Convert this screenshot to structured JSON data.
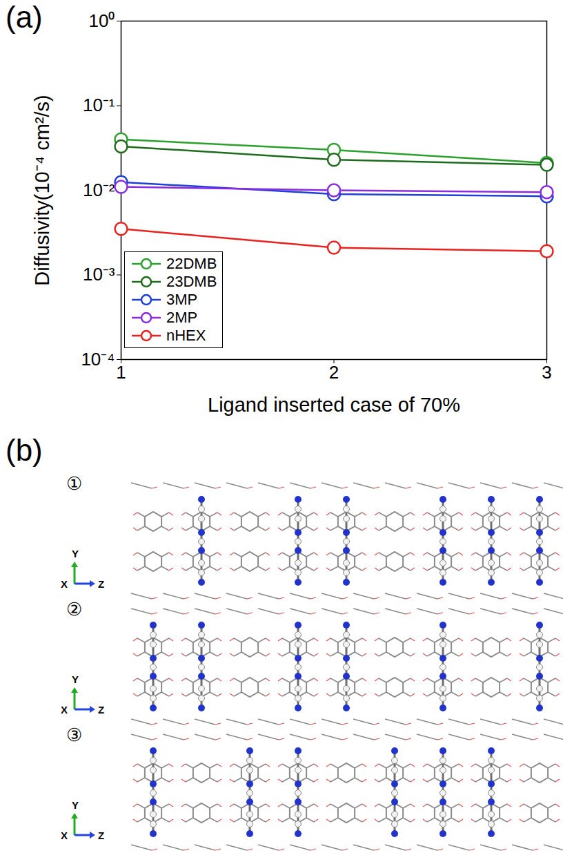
{
  "chart_data": {
    "type": "line",
    "panel_label": "(a)",
    "xlabel": "Ligand inserted case of 70%",
    "ylabel": "Diffusivity(10⁻⁴ cm²/s)",
    "x": [
      1,
      2,
      3
    ],
    "xlim": [
      1,
      3
    ],
    "xticks": [
      1,
      2,
      3
    ],
    "ylim": [
      0.0001,
      1
    ],
    "yticks": [
      {
        "value": 0.0001,
        "label": "10⁻⁴"
      },
      {
        "value": 0.001,
        "label": "10⁻³"
      },
      {
        "value": 0.01,
        "label": "10⁻²"
      },
      {
        "value": 0.1,
        "label": "10⁻¹"
      },
      {
        "value": 1,
        "label": "10⁰"
      }
    ],
    "log": "y",
    "legend": "lower left",
    "marker": "circle",
    "series": [
      {
        "name": "22DMB",
        "color": "#2ca02c",
        "values": [
          0.04,
          0.03,
          0.021
        ]
      },
      {
        "name": "23DMB",
        "color": "#1e6b1e",
        "values": [
          0.033,
          0.023,
          0.02
        ]
      },
      {
        "name": "3MP",
        "color": "#1f3fd6",
        "values": [
          0.0125,
          0.009,
          0.0085
        ]
      },
      {
        "name": "2MP",
        "color": "#8a2be2",
        "values": [
          0.011,
          0.01,
          0.0095
        ]
      },
      {
        "name": "nHEX",
        "color": "#e8231f",
        "values": [
          0.0035,
          0.0021,
          0.0019
        ]
      }
    ]
  },
  "panel_b": {
    "label": "(b)",
    "rows": [
      {
        "label": "①",
        "axes": [
          "Y",
          "X",
          "Z"
        ]
      },
      {
        "label": "②",
        "axes": [
          "Y",
          "X",
          "Z"
        ]
      },
      {
        "label": "③",
        "axes": [
          "Y",
          "X",
          "Z"
        ]
      }
    ]
  }
}
